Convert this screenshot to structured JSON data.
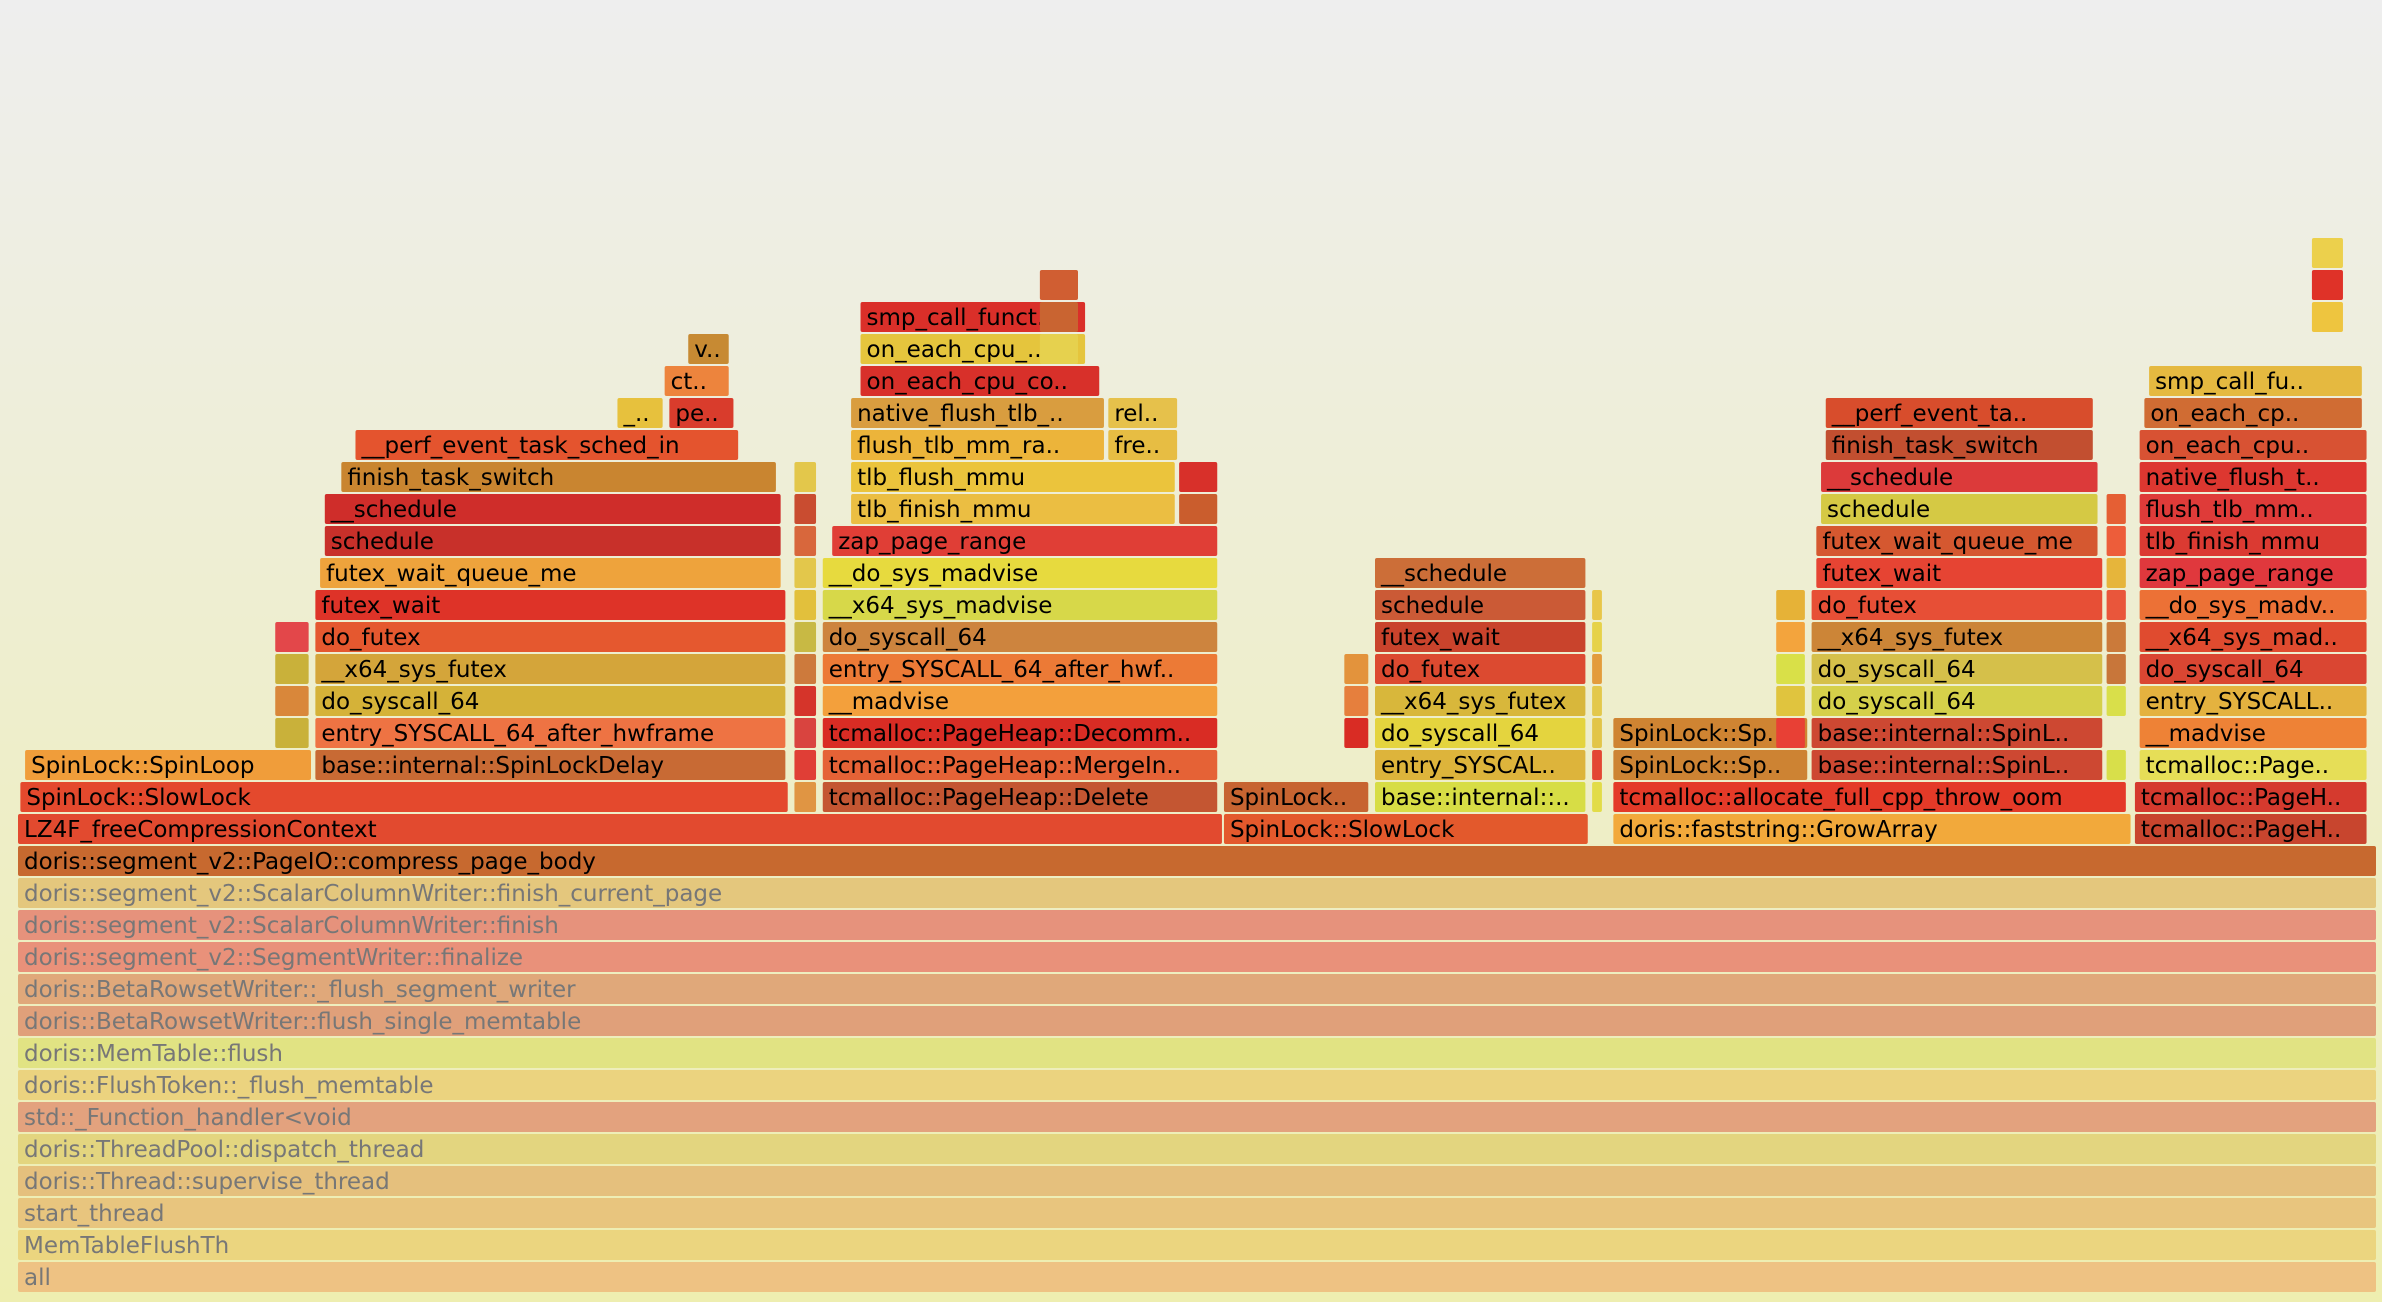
{
  "chart_data": {
    "type": "flamegraph",
    "x_total": 1000,
    "levels": 39,
    "frames": [
      {
        "label": "all",
        "x": 0,
        "w": 1000,
        "level": 0,
        "color": "#eec283",
        "dim": true
      },
      {
        "label": "MemTableFlushTh",
        "x": 0,
        "w": 1000,
        "level": 1,
        "color": "#ebd57f",
        "dim": true
      },
      {
        "label": "start_thread",
        "x": 0,
        "w": 1000,
        "level": 2,
        "color": "#e8c57e",
        "dim": true
      },
      {
        "label": "doris::Thread::supervise_thread",
        "x": 0,
        "w": 1000,
        "level": 3,
        "color": "#e5c07d",
        "dim": true
      },
      {
        "label": "doris::ThreadPool::dispatch_thread",
        "x": 0,
        "w": 1000,
        "level": 4,
        "color": "#e3d57f",
        "dim": true
      },
      {
        "label": "std::_Function_handler<void",
        "x": 0,
        "w": 1000,
        "level": 5,
        "color": "#e3a27e",
        "dim": true
      },
      {
        "label": "doris::FlushToken::_flush_memtable",
        "x": 0,
        "w": 1000,
        "level": 6,
        "color": "#ebd37f",
        "dim": true
      },
      {
        "label": "doris::MemTable::flush",
        "x": 0,
        "w": 1000,
        "level": 7,
        "color": "#e1e383",
        "dim": true
      },
      {
        "label": "doris::BetaRowsetWriter::flush_single_memtable",
        "x": 0,
        "w": 1000,
        "level": 8,
        "color": "#e0a07a",
        "dim": true
      },
      {
        "label": "doris::BetaRowsetWriter::_flush_segment_writer",
        "x": 0,
        "w": 1000,
        "level": 9,
        "color": "#e0a87a",
        "dim": true
      },
      {
        "label": "doris::segment_v2::SegmentWriter::finalize",
        "x": 0,
        "w": 1000,
        "level": 10,
        "color": "#e9917a",
        "dim": true
      },
      {
        "label": "doris::segment_v2::ScalarColumnWriter::finish",
        "x": 0,
        "w": 1000,
        "level": 11,
        "color": "#e6927c",
        "dim": true
      },
      {
        "label": "doris::segment_v2::ScalarColumnWriter::finish_current_page",
        "x": 0,
        "w": 1000,
        "level": 12,
        "color": "#e4c77d",
        "dim": true
      },
      {
        "label": "doris::segment_v2::PageIO::compress_page_body",
        "x": 0,
        "w": 1000,
        "level": 13,
        "color": "#c7692f"
      },
      {
        "label": "LZ4F_freeCompressionContext",
        "x": 0,
        "w": 511,
        "level": 14,
        "color": "#e24a2f"
      },
      {
        "label": "SpinLock::SlowLock",
        "x": 511,
        "w": 155,
        "level": 14,
        "color": "#e3592c"
      },
      {
        "label": "doris::faststring::GrowArray",
        "x": 676,
        "w": 220,
        "level": 14,
        "color": "#f2a93b"
      },
      {
        "label": "tcmalloc::PageH..",
        "x": 897,
        "w": 99,
        "level": 14,
        "color": "#c8452e"
      },
      {
        "label": "SpinLock::SlowLock",
        "x": 1,
        "w": 326,
        "level": 15,
        "color": "#e4492d"
      },
      {
        "label": "",
        "x": 329,
        "w": 10,
        "level": 15,
        "color": "#e09543"
      },
      {
        "label": "tcmalloc::PageHeap::Delete",
        "x": 341,
        "w": 168,
        "level": 15,
        "color": "#c45632"
      },
      {
        "label": "SpinLock..",
        "x": 511,
        "w": 62,
        "level": 15,
        "color": "#c76431"
      },
      {
        "label": "base::internal::..",
        "x": 575,
        "w": 90,
        "level": 15,
        "color": "#d7dd45"
      },
      {
        "label": "",
        "x": 667,
        "w": 5,
        "level": 15,
        "color": "#e2dc48"
      },
      {
        "label": "tcmalloc::allocate_full_cpp_throw_oom",
        "x": 676,
        "w": 218,
        "level": 15,
        "color": "#e43a28"
      },
      {
        "label": "tcmalloc::PageH..",
        "x": 897,
        "w": 99,
        "level": 15,
        "color": "#d53a2e"
      },
      {
        "label": "SpinLock::SpinLoop",
        "x": 3,
        "w": 122,
        "level": 16,
        "color": "#f09d3a"
      },
      {
        "label": "base::internal::SpinLockDelay",
        "x": 126,
        "w": 200,
        "level": 16,
        "color": "#c86a34"
      },
      {
        "label": "",
        "x": 329,
        "w": 10,
        "level": 16,
        "color": "#e03e36"
      },
      {
        "label": "tcmalloc::PageHeap::MergeIn..",
        "x": 341,
        "w": 168,
        "level": 16,
        "color": "#e56236"
      },
      {
        "label": "entry_SYSCAL..",
        "x": 575,
        "w": 90,
        "level": 16,
        "color": "#ddb43b"
      },
      {
        "label": "",
        "x": 667,
        "w": 5,
        "level": 16,
        "color": "#e34733"
      },
      {
        "label": "SpinLock::Sp..",
        "x": 676,
        "w": 83,
        "level": 16,
        "color": "#cd8333"
      },
      {
        "label": "base::internal::SpinL..",
        "x": 760,
        "w": 124,
        "level": 16,
        "color": "#cd4832"
      },
      {
        "label": "",
        "x": 885,
        "w": 9,
        "level": 16,
        "color": "#d8df4a"
      },
      {
        "label": "tcmalloc::Page..",
        "x": 899,
        "w": 97,
        "level": 16,
        "color": "#e6de57"
      },
      {
        "label": "",
        "x": 109,
        "w": 15,
        "level": 17,
        "color": "#c9b13a"
      },
      {
        "label": "entry_SYSCALL_64_after_hwframe",
        "x": 126,
        "w": 200,
        "level": 17,
        "color": "#ee7343"
      },
      {
        "label": "",
        "x": 329,
        "w": 10,
        "level": 17,
        "color": "#d9443f"
      },
      {
        "label": "tcmalloc::PageHeap::Decomm..",
        "x": 341,
        "w": 168,
        "level": 17,
        "color": "#d92c24"
      },
      {
        "label": "",
        "x": 562,
        "w": 11,
        "level": 17,
        "color": "#d92c24"
      },
      {
        "label": "do_syscall_64",
        "x": 575,
        "w": 90,
        "level": 17,
        "color": "#e4d43e"
      },
      {
        "label": "",
        "x": 667,
        "w": 5,
        "level": 17,
        "color": "#e2c548"
      },
      {
        "label": "SpinLock::Sp..",
        "x": 676,
        "w": 83,
        "level": 17,
        "color": "#cf8432"
      },
      {
        "label": "base::internal::SpinL..",
        "x": 760,
        "w": 124,
        "level": 17,
        "color": "#cd4832"
      },
      {
        "label": "",
        "x": 745,
        "w": 13,
        "level": 17,
        "color": "#e84035"
      },
      {
        "label": "__madvise",
        "x": 899,
        "w": 97,
        "level": 17,
        "color": "#ee8236"
      },
      {
        "label": "",
        "x": 109,
        "w": 15,
        "level": 18,
        "color": "#d9873a"
      },
      {
        "label": "do_syscall_64",
        "x": 126,
        "w": 200,
        "level": 18,
        "color": "#d5b238"
      },
      {
        "label": "",
        "x": 329,
        "w": 10,
        "level": 18,
        "color": "#d5342a"
      },
      {
        "label": "__madvise",
        "x": 341,
        "w": 168,
        "level": 18,
        "color": "#f3a03c"
      },
      {
        "label": "",
        "x": 562,
        "w": 11,
        "level": 18,
        "color": "#e67f3d"
      },
      {
        "label": "__x64_sys_futex",
        "x": 575,
        "w": 90,
        "level": 18,
        "color": "#d8b73b"
      },
      {
        "label": "",
        "x": 667,
        "w": 5,
        "level": 18,
        "color": "#e3c84b"
      },
      {
        "label": "do_syscall_64",
        "x": 760,
        "w": 124,
        "level": 18,
        "color": "#d5d04a"
      },
      {
        "label": "",
        "x": 745,
        "w": 13,
        "level": 18,
        "color": "#e0c43e"
      },
      {
        "label": "",
        "x": 885,
        "w": 9,
        "level": 18,
        "color": "#d9df4a"
      },
      {
        "label": "entry_SYSCALL..",
        "x": 899,
        "w": 97,
        "level": 18,
        "color": "#e4b23f"
      },
      {
        "label": "",
        "x": 109,
        "w": 15,
        "level": 19,
        "color": "#c9b13a"
      },
      {
        "label": "__x64_sys_futex",
        "x": 126,
        "w": 200,
        "level": 19,
        "color": "#d4a53a"
      },
      {
        "label": "",
        "x": 329,
        "w": 10,
        "level": 19,
        "color": "#cd7a3c"
      },
      {
        "label": "entry_SYSCALL_64_after_hwf..",
        "x": 341,
        "w": 168,
        "level": 19,
        "color": "#ec7a36"
      },
      {
        "label": "",
        "x": 562,
        "w": 11,
        "level": 19,
        "color": "#e3933c"
      },
      {
        "label": "do_futex",
        "x": 575,
        "w": 90,
        "level": 19,
        "color": "#dc4a30"
      },
      {
        "label": "",
        "x": 667,
        "w": 5,
        "level": 19,
        "color": "#e39c3c"
      },
      {
        "label": "",
        "x": 745,
        "w": 13,
        "level": 19,
        "color": "#d9e048"
      },
      {
        "label": "do_syscall_64",
        "x": 760,
        "w": 124,
        "level": 19,
        "color": "#d5c04a"
      },
      {
        "label": "",
        "x": 885,
        "w": 9,
        "level": 19,
        "color": "#c8763a"
      },
      {
        "label": "do_syscall_64",
        "x": 899,
        "w": 97,
        "level": 19,
        "color": "#da4632"
      },
      {
        "label": "",
        "x": 109,
        "w": 15,
        "level": 20,
        "color": "#e3474a"
      },
      {
        "label": "do_futex",
        "x": 126,
        "w": 200,
        "level": 20,
        "color": "#e5582f"
      },
      {
        "label": "",
        "x": 329,
        "w": 10,
        "level": 20,
        "color": "#c8b944"
      },
      {
        "label": "do_syscall_64",
        "x": 341,
        "w": 168,
        "level": 20,
        "color": "#cd843e"
      },
      {
        "label": "futex_wait",
        "x": 575,
        "w": 90,
        "level": 20,
        "color": "#c9432c"
      },
      {
        "label": "",
        "x": 667,
        "w": 5,
        "level": 20,
        "color": "#e6d249"
      },
      {
        "label": "",
        "x": 745,
        "w": 13,
        "level": 20,
        "color": "#f3a43d"
      },
      {
        "label": "__x64_sys_futex",
        "x": 760,
        "w": 124,
        "level": 20,
        "color": "#cc8537"
      },
      {
        "label": "do_futex",
        "x": 760,
        "w": 124,
        "level": 21,
        "color": "#e74f36"
      },
      {
        "label": "",
        "x": 885,
        "w": 9,
        "level": 20,
        "color": "#cb7a3a"
      },
      {
        "label": "__x64_sys_mad..",
        "x": 899,
        "w": 97,
        "level": 20,
        "color": "#e04b2f"
      },
      {
        "label": "futex_wait",
        "x": 126,
        "w": 200,
        "level": 21,
        "color": "#de3328"
      },
      {
        "label": "",
        "x": 329,
        "w": 10,
        "level": 21,
        "color": "#e2c03c"
      },
      {
        "label": "__x64_sys_madvise",
        "x": 341,
        "w": 168,
        "level": 21,
        "color": "#d7d849"
      },
      {
        "label": "schedule",
        "x": 575,
        "w": 90,
        "level": 21,
        "color": "#cb5a36"
      },
      {
        "label": "",
        "x": 667,
        "w": 5,
        "level": 21,
        "color": "#e8c649"
      },
      {
        "label": "",
        "x": 745,
        "w": 13,
        "level": 21,
        "color": "#e6b237"
      },
      {
        "label": "",
        "x": 885,
        "w": 9,
        "level": 21,
        "color": "#e9563b"
      },
      {
        "label": "__do_sys_madv..",
        "x": 899,
        "w": 97,
        "level": 21,
        "color": "#ec7136"
      },
      {
        "label": "futex_wait_queue_me",
        "x": 128,
        "w": 196,
        "level": 22,
        "color": "#eea33c"
      },
      {
        "label": "",
        "x": 329,
        "w": 10,
        "level": 22,
        "color": "#e3c74b"
      },
      {
        "label": "__do_sys_madvise",
        "x": 341,
        "w": 168,
        "level": 22,
        "color": "#e7da3e"
      },
      {
        "label": "__schedule",
        "x": 575,
        "w": 90,
        "level": 22,
        "color": "#cc6e38"
      },
      {
        "label": "futex_wait",
        "x": 762,
        "w": 122,
        "level": 22,
        "color": "#e64433"
      },
      {
        "label": "",
        "x": 885,
        "w": 9,
        "level": 22,
        "color": "#e6b53b"
      },
      {
        "label": "zap_page_range",
        "x": 899,
        "w": 97,
        "level": 22,
        "color": "#e0383d"
      },
      {
        "label": "schedule",
        "x": 130,
        "w": 194,
        "level": 23,
        "color": "#c8302a"
      },
      {
        "label": "",
        "x": 329,
        "w": 10,
        "level": 23,
        "color": "#d8673c"
      },
      {
        "label": "zap_page_range",
        "x": 345,
        "w": 164,
        "level": 23,
        "color": "#e03e36"
      },
      {
        "label": "futex_wait_queue_me",
        "x": 762,
        "w": 120,
        "level": 23,
        "color": "#d55830"
      },
      {
        "label": "",
        "x": 885,
        "w": 9,
        "level": 23,
        "color": "#ed5d3a"
      },
      {
        "label": "tlb_finish_mmu",
        "x": 899,
        "w": 97,
        "level": 23,
        "color": "#db3a32"
      },
      {
        "label": "__schedule",
        "x": 130,
        "w": 194,
        "level": 24,
        "color": "#cf2d2a"
      },
      {
        "label": "",
        "x": 329,
        "w": 10,
        "level": 24,
        "color": "#c94c30"
      },
      {
        "label": "tlb_finish_mmu",
        "x": 353,
        "w": 138,
        "level": 24,
        "color": "#ebbe42"
      },
      {
        "label": "",
        "x": 492,
        "w": 17,
        "level": 24,
        "color": "#ca5d2d"
      },
      {
        "label": "schedule",
        "x": 764,
        "w": 118,
        "level": 24,
        "color": "#d5c944"
      },
      {
        "label": "",
        "x": 885,
        "w": 9,
        "level": 24,
        "color": "#e55f34"
      },
      {
        "label": "flush_tlb_mm..",
        "x": 899,
        "w": 97,
        "level": 24,
        "color": "#df3b39"
      },
      {
        "label": "finish_task_switch",
        "x": 137,
        "w": 185,
        "level": 25,
        "color": "#c98530"
      },
      {
        "label": "",
        "x": 329,
        "w": 10,
        "level": 25,
        "color": "#e3c74b"
      },
      {
        "label": "tlb_flush_mmu",
        "x": 353,
        "w": 138,
        "level": 25,
        "color": "#ebc43c"
      },
      {
        "label": "",
        "x": 492,
        "w": 17,
        "level": 25,
        "color": "#d8302a"
      },
      {
        "label": "__schedule",
        "x": 764,
        "w": 118,
        "level": 25,
        "color": "#dc3a3a"
      },
      {
        "label": "native_flush_t..",
        "x": 899,
        "w": 97,
        "level": 25,
        "color": "#dd3730"
      },
      {
        "label": "__perf_event_task_sched_in",
        "x": 143,
        "w": 163,
        "level": 26,
        "color": "#e4542e"
      },
      {
        "label": "flush_tlb_mm_ra..",
        "x": 353,
        "w": 108,
        "level": 26,
        "color": "#ecb43a"
      },
      {
        "label": "fre..",
        "x": 462,
        "w": 30,
        "level": 26,
        "color": "#e7bd43"
      },
      {
        "label": "finish_task_switch",
        "x": 766,
        "w": 114,
        "level": 26,
        "color": "#c24f30"
      },
      {
        "label": "on_each_cpu..",
        "x": 899,
        "w": 97,
        "level": 26,
        "color": "#d85233"
      },
      {
        "label": "_..",
        "x": 254,
        "w": 20,
        "level": 27,
        "color": "#e7c13d"
      },
      {
        "label": "pe..",
        "x": 276,
        "w": 28,
        "level": 27,
        "color": "#d93c2c"
      },
      {
        "label": "native_flush_tlb_..",
        "x": 353,
        "w": 108,
        "level": 27,
        "color": "#d99d3f"
      },
      {
        "label": "rel..",
        "x": 462,
        "w": 30,
        "level": 27,
        "color": "#e6c14b"
      },
      {
        "label": "__perf_event_ta..",
        "x": 766,
        "w": 114,
        "level": 27,
        "color": "#d84d2c"
      },
      {
        "label": "on_each_cp..",
        "x": 901,
        "w": 93,
        "level": 27,
        "color": "#d06c33"
      },
      {
        "label": "ct..",
        "x": 274,
        "w": 28,
        "level": 28,
        "color": "#ed843d"
      },
      {
        "label": "on_each_cpu_co..",
        "x": 357,
        "w": 102,
        "level": 28,
        "color": "#d8302a"
      },
      {
        "label": "smp_call_fu..",
        "x": 903,
        "w": 91,
        "level": 28,
        "color": "#e5b940"
      },
      {
        "label": "v..",
        "x": 284,
        "w": 18,
        "level": 29,
        "color": "#c78a33"
      },
      {
        "label": "on_each_cpu_..",
        "x": 357,
        "w": 96,
        "level": 29,
        "color": "#e5c53d"
      },
      {
        "label": "smp_call_funct..",
        "x": 357,
        "w": 96,
        "level": 30,
        "color": "#da2f29"
      },
      {
        "label": "",
        "x": 433,
        "w": 17,
        "level": 29,
        "color": "#e6d14e"
      },
      {
        "label": "",
        "x": 433,
        "w": 17,
        "level": 30,
        "color": "#c96431"
      },
      {
        "label": "",
        "x": 433,
        "w": 17,
        "level": 31,
        "color": "#d05e32"
      },
      {
        "label": "",
        "x": 972,
        "w": 14,
        "level": 30,
        "color": "#eec53f"
      },
      {
        "label": "",
        "x": 972,
        "w": 14,
        "level": 31,
        "color": "#df3228"
      },
      {
        "label": "",
        "x": 972,
        "w": 14,
        "level": 32,
        "color": "#ecd04c"
      }
    ]
  }
}
